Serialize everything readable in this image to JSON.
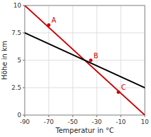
{
  "chart_data": {
    "type": "line",
    "xlabel": "Temperatur in °C",
    "ylabel": "Höhe in km",
    "xlim": [
      -90,
      10
    ],
    "ylim": [
      0,
      10
    ],
    "xticks": [
      -90,
      -70,
      -50,
      -30,
      -10,
      10
    ],
    "yticks": [
      0,
      2.5,
      5,
      7.5,
      10
    ],
    "grid": true,
    "series": [
      {
        "type": "line",
        "color": "#cc0000",
        "x": [
          -90,
          10
        ],
        "values": [
          10,
          0
        ]
      },
      {
        "type": "line",
        "color": "#000000",
        "x": [
          -90,
          10
        ],
        "values": [
          7.5,
          2.5
        ]
      },
      {
        "type": "scatter",
        "color": "#cc0000",
        "marker": "circle",
        "x": [
          -70,
          -35,
          -12
        ],
        "values": [
          8.22,
          5.0,
          2.1
        ]
      }
    ],
    "annotations": [
      {
        "text": "A",
        "x": -70,
        "y": 8.22
      },
      {
        "text": "B",
        "x": -35,
        "y": 5.0
      },
      {
        "text": "C",
        "x": -12,
        "y": 2.1
      }
    ]
  }
}
